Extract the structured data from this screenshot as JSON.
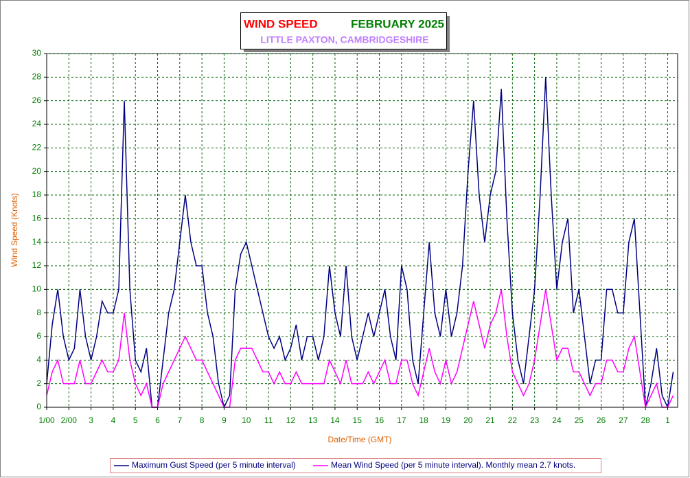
{
  "chart_data": {
    "type": "line",
    "title": "WIND SPEED",
    "title_period": "FEBRUARY 2025",
    "subtitle": "LITTLE PAXTON, CAMBRIDGESHIRE",
    "x_label": "Date/Time (GMT)",
    "y_label": "Wind Speed (Knots)",
    "x": [
      0,
      0.25,
      0.5,
      0.75,
      1,
      1.25,
      1.5,
      1.75,
      2,
      2.25,
      2.5,
      2.75,
      3,
      3.25,
      3.5,
      3.75,
      4,
      4.25,
      4.5,
      4.75,
      5,
      5.25,
      5.5,
      5.75,
      6,
      6.25,
      6.5,
      6.75,
      7,
      7.25,
      7.5,
      7.75,
      8,
      8.25,
      8.5,
      8.75,
      9,
      9.25,
      9.5,
      9.75,
      10,
      10.25,
      10.5,
      10.75,
      11,
      11.25,
      11.5,
      11.75,
      12,
      12.25,
      12.5,
      12.75,
      13,
      13.25,
      13.5,
      13.75,
      14,
      14.25,
      14.5,
      14.75,
      15,
      15.25,
      15.5,
      15.75,
      16,
      16.25,
      16.5,
      16.75,
      17,
      17.25,
      17.5,
      17.75,
      18,
      18.25,
      18.5,
      18.75,
      19,
      19.25,
      19.5,
      19.75,
      20,
      20.25,
      20.5,
      20.75,
      21,
      21.25,
      21.5,
      21.75,
      22,
      22.25,
      22.5,
      22.75,
      23,
      23.25,
      23.5,
      23.75,
      24,
      24.25,
      24.5,
      24.75,
      25,
      25.25,
      25.5,
      25.75,
      26,
      26.25,
      26.5,
      26.75,
      27,
      27.25,
      27.5,
      27.75,
      28,
      28.25
    ],
    "series": [
      {
        "name": "Maximum Gust Speed (per 5 minute interval)",
        "color": "#000080",
        "values": [
          2,
          7,
          10,
          6,
          4,
          5,
          10,
          6,
          4,
          6,
          9,
          8,
          8,
          10,
          26,
          10,
          4,
          3,
          5,
          0,
          0,
          4,
          8,
          10,
          14,
          18,
          14,
          12,
          12,
          8,
          6,
          2,
          0,
          1,
          10,
          13,
          14,
          12,
          10,
          8,
          6,
          5,
          6,
          4,
          5,
          7,
          4,
          6,
          6,
          4,
          6,
          12,
          8,
          6,
          12,
          6,
          4,
          6,
          8,
          6,
          8,
          10,
          6,
          4,
          12,
          10,
          4,
          2,
          8,
          14,
          8,
          6,
          10,
          6,
          8,
          12,
          20,
          26,
          18,
          14,
          18,
          20,
          27,
          16,
          8,
          4,
          2,
          6,
          10,
          18,
          28,
          18,
          10,
          14,
          16,
          8,
          10,
          6,
          2,
          4,
          4,
          10,
          10,
          8,
          8,
          14,
          16,
          8,
          0,
          2,
          5,
          1,
          0,
          3
        ]
      },
      {
        "name": "Mean Wind Speed (per 5 minute interval). Monthly mean 2.7 knots.",
        "color": "#ff00ff",
        "values": [
          1,
          3,
          4,
          2,
          2,
          2,
          4,
          2,
          2,
          3,
          4,
          3,
          3,
          4,
          8,
          4,
          2,
          1,
          2,
          0,
          0,
          2,
          3,
          4,
          5,
          6,
          5,
          4,
          4,
          3,
          2,
          1,
          0,
          0,
          4,
          5,
          5,
          5,
          4,
          3,
          3,
          2,
          3,
          2,
          2,
          3,
          2,
          2,
          2,
          2,
          2,
          4,
          3,
          2,
          4,
          2,
          2,
          2,
          3,
          2,
          3,
          4,
          2,
          2,
          4,
          4,
          2,
          1,
          3,
          5,
          3,
          2,
          4,
          2,
          3,
          5,
          7,
          9,
          7,
          5,
          7,
          8,
          10,
          6,
          3,
          2,
          1,
          2,
          4,
          7,
          10,
          7,
          4,
          5,
          5,
          3,
          3,
          2,
          1,
          2,
          2,
          4,
          4,
          3,
          3,
          5,
          6,
          3,
          0,
          1,
          2,
          0,
          0,
          1
        ]
      }
    ],
    "xlim": [
      0,
      28.45
    ],
    "xticks": [
      {
        "value": 0,
        "label": "1/00"
      },
      {
        "value": 1,
        "label": "2/00"
      },
      {
        "value": 2,
        "label": "3"
      },
      {
        "value": 3,
        "label": "4"
      },
      {
        "value": 4,
        "label": "5"
      },
      {
        "value": 5,
        "label": "6"
      },
      {
        "value": 6,
        "label": "7"
      },
      {
        "value": 7,
        "label": "8"
      },
      {
        "value": 8,
        "label": "9"
      },
      {
        "value": 9,
        "label": "10"
      },
      {
        "value": 10,
        "label": "11"
      },
      {
        "value": 11,
        "label": "12"
      },
      {
        "value": 12,
        "label": "13"
      },
      {
        "value": 13,
        "label": "14"
      },
      {
        "value": 14,
        "label": "15"
      },
      {
        "value": 15,
        "label": "16"
      },
      {
        "value": 16,
        "label": "17"
      },
      {
        "value": 17,
        "label": "18"
      },
      {
        "value": 18,
        "label": "19"
      },
      {
        "value": 19,
        "label": "20"
      },
      {
        "value": 20,
        "label": "21"
      },
      {
        "value": 21,
        "label": "22"
      },
      {
        "value": 22,
        "label": "23"
      },
      {
        "value": 23,
        "label": "24"
      },
      {
        "value": 24,
        "label": "25"
      },
      {
        "value": 25,
        "label": "26"
      },
      {
        "value": 26,
        "label": "27"
      },
      {
        "value": 27,
        "label": "28"
      },
      {
        "value": 28,
        "label": "1"
      }
    ],
    "ylim": [
      0,
      30
    ],
    "yticks": [
      0,
      2,
      4,
      6,
      8,
      10,
      12,
      14,
      16,
      18,
      20,
      22,
      24,
      26,
      28,
      30
    ],
    "grid": true
  }
}
